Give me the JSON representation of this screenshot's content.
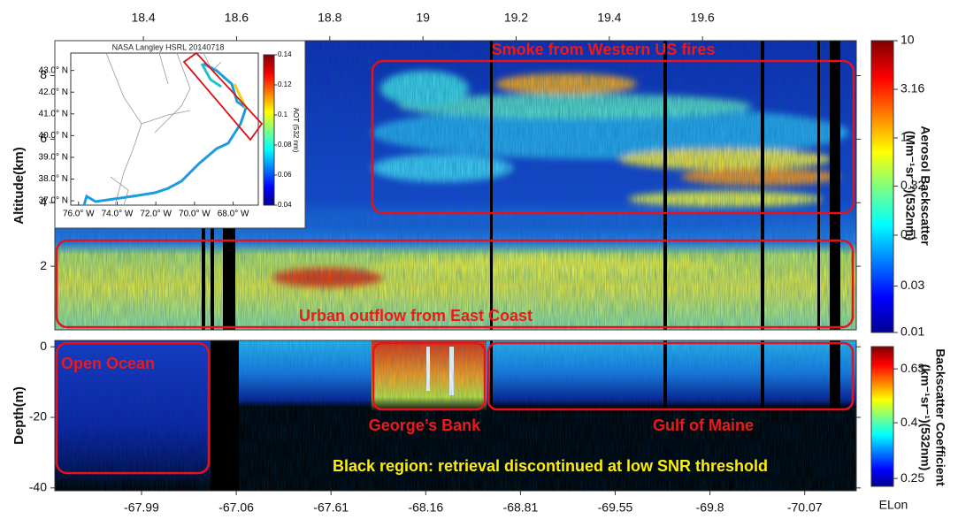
{
  "chart_data": [
    {
      "type": "heatmap",
      "ylabel": "Altitude(km)",
      "xlim": [
        18.21,
        19.93
      ],
      "xticks": [
        18.4,
        18.6,
        18.8,
        19,
        19.2,
        19.4,
        19.6
      ],
      "ylim": [
        0,
        9.1
      ],
      "yticks": [
        2,
        4,
        6,
        8
      ],
      "colorbar": {
        "label": [
          "Aerosol Backscatter",
          "(Mm⁻¹sr⁻¹)(532nm)"
        ],
        "log": true,
        "lim": [
          0.01,
          10
        ],
        "ticks": [
          10,
          3.16,
          1,
          0.32,
          0.1,
          0.03,
          0.01
        ]
      },
      "annotations": [
        "Smoke from Western US fires",
        "Urban outflow from East Coast"
      ]
    },
    {
      "type": "heatmap",
      "ylabel": "Depth(m)",
      "xtick_labels": [
        "-67.99",
        "-67.06",
        "-67.61",
        "-68.16",
        "-68.81",
        "-69.55",
        "-69.8",
        "-70.07"
      ],
      "xlabel": "ELon",
      "ylim": [
        -40.8,
        1.8
      ],
      "yticks": [
        0,
        -20,
        -40
      ],
      "colorbar": {
        "label": [
          "Backscatter Coefficient",
          "(km⁻¹sr⁻¹)(532nm)"
        ],
        "log": true,
        "lim": [
          0.234,
          0.76
        ],
        "ticks": [
          0.63,
          0.4,
          0.25
        ]
      },
      "annotations": [
        "Open Ocean",
        "George’s Bank",
        "Gulf of Maine",
        "Black region: retrieval discontinued at low SNR threshold"
      ]
    },
    {
      "type": "map",
      "title": "NASA Langley HSRL 20140718",
      "latlim": [
        36.8,
        43.8
      ],
      "lat_ticks": [
        {
          "value": 43,
          "label": "43.0° N"
        },
        {
          "value": 42,
          "label": "42.0° N"
        },
        {
          "value": 41,
          "label": "41.0° N"
        },
        {
          "value": 40,
          "label": "40.0° N"
        },
        {
          "value": 39,
          "label": "39.0° N"
        },
        {
          "value": 38,
          "label": "38.0° N"
        },
        {
          "value": 37,
          "label": "37.0° N"
        }
      ],
      "lonlim": [
        76.4,
        66.7
      ],
      "lon_ticks": [
        {
          "value": 76,
          "label": "76.0° W"
        },
        {
          "value": 74,
          "label": "74.0° W"
        },
        {
          "value": 72,
          "label": "72.0° W"
        },
        {
          "value": 70,
          "label": "70.0° W"
        },
        {
          "value": 68,
          "label": "68.0° W"
        }
      ],
      "colorbar": {
        "label": "AOT (532 nm)",
        "log": false,
        "lim": [
          0.04,
          0.14
        ],
        "ticks": [
          0.04,
          0.06,
          0.08,
          0.1,
          0.12,
          0.14
        ]
      }
    }
  ]
}
